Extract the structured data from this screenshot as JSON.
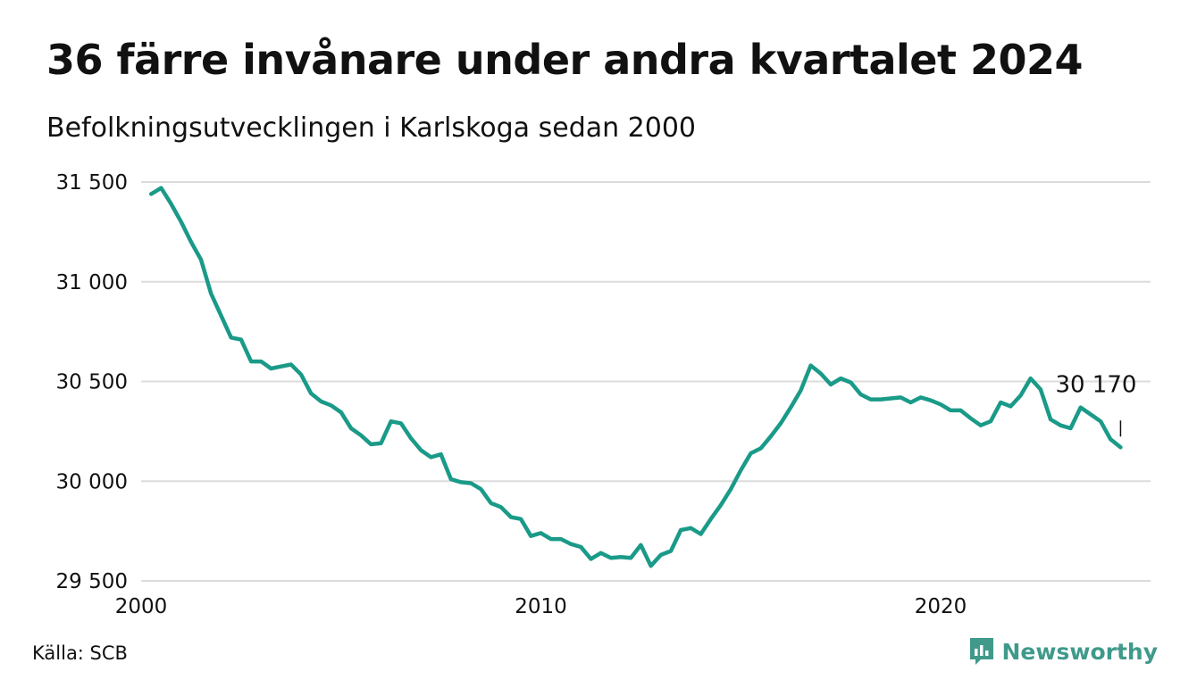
{
  "header": {
    "title": "36 färre invånare under andra kvartalet 2024",
    "subtitle": "Befolkningsutvecklingen i Karlskoga sedan 2000"
  },
  "footer": {
    "source": "Källa: SCB",
    "brand": "Newsworthy",
    "brand_color": "#3f9a8b"
  },
  "chart_data": {
    "type": "line",
    "title": "36 färre invånare under andra kvartalet 2024",
    "subtitle": "Befolkningsutvecklingen i Karlskoga sedan 2000",
    "xlabel": "",
    "ylabel": "",
    "ylim": [
      29500,
      31500
    ],
    "xlim": [
      2000,
      2025.25
    ],
    "yticks": [
      29500,
      30000,
      30500,
      31000,
      31500
    ],
    "ytick_labels": [
      "29 500",
      "30 000",
      "30 500",
      "31 000",
      "31 500"
    ],
    "xticks": [
      2000,
      2010,
      2020
    ],
    "xtick_labels": [
      "2000",
      "2010",
      "2020"
    ],
    "grid": true,
    "color": "#1a9a88",
    "end_label": "30 170",
    "series": [
      {
        "x": [
          2000.25,
          2000.5,
          2000.75,
          2001,
          2001.25,
          2001.5,
          2001.75,
          2002,
          2002.25,
          2002.5,
          2002.75,
          2003,
          2003.25,
          2003.5,
          2003.75,
          2004,
          2004.25,
          2004.5,
          2004.75,
          2005,
          2005.25,
          2005.5,
          2005.75,
          2006,
          2006.25,
          2006.5,
          2006.75,
          2007,
          2007.25,
          2007.5,
          2007.75,
          2008,
          2008.25,
          2008.5,
          2008.75,
          2009,
          2009.25,
          2009.5,
          2009.75,
          2010,
          2010.25,
          2010.5,
          2010.75,
          2011,
          2011.25,
          2011.5,
          2011.75,
          2012,
          2012.25,
          2012.5,
          2012.75,
          2013,
          2013.25,
          2013.5,
          2013.75,
          2014,
          2014.25,
          2014.5,
          2014.75,
          2015,
          2015.25,
          2015.5,
          2015.75,
          2016,
          2016.25,
          2016.5,
          2016.75,
          2017,
          2017.25,
          2017.5,
          2017.75,
          2018,
          2018.25,
          2018.5,
          2018.75,
          2019,
          2019.25,
          2019.5,
          2019.75,
          2020,
          2020.25,
          2020.5,
          2020.75,
          2021,
          2021.25,
          2021.5,
          2021.75,
          2022,
          2022.25,
          2022.5,
          2022.75,
          2023,
          2023.25,
          2023.5,
          2023.75,
          2024,
          2024.25,
          2024.5
        ],
        "values": [
          31440,
          31470,
          31390,
          31300,
          31200,
          31110,
          30940,
          30830,
          30720,
          30710,
          30600,
          30600,
          30565,
          30575,
          30585,
          30535,
          30440,
          30400,
          30380,
          30345,
          30265,
          30230,
          30185,
          30190,
          30300,
          30290,
          30215,
          30155,
          30120,
          30135,
          30010,
          29995,
          29990,
          29960,
          29890,
          29870,
          29820,
          29810,
          29725,
          29740,
          29710,
          29710,
          29685,
          29670,
          29610,
          29640,
          29615,
          29620,
          29615,
          29680,
          29575,
          29630,
          29650,
          29755,
          29765,
          29735,
          29810,
          29880,
          29960,
          30055,
          30140,
          30165,
          30225,
          30290,
          30370,
          30455,
          30580,
          30540,
          30485,
          30515,
          30495,
          30435,
          30410,
          30410,
          30415,
          30420,
          30395,
          30420,
          30405,
          30385,
          30355,
          30355,
          30315,
          30280,
          30300,
          30395,
          30375,
          30430,
          30515,
          30460,
          30310,
          30280,
          30265,
          30370,
          30335,
          30300,
          30210,
          30170
        ]
      }
    ]
  }
}
